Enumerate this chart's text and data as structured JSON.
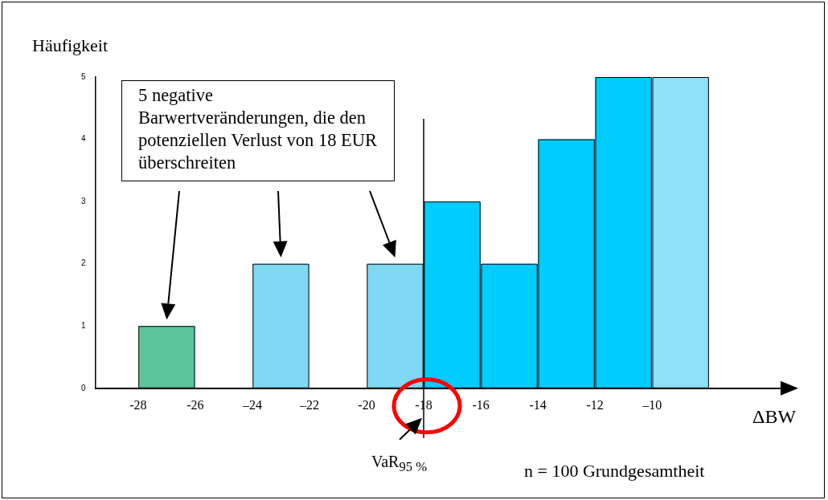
{
  "chart_data": {
    "type": "histogram",
    "ylabel": "Häufigkeit",
    "xlabel": "ΔBW",
    "bins": [
      -28,
      -26,
      -24,
      -22,
      -20,
      -18,
      -16,
      -14,
      -12,
      -10,
      -8
    ],
    "values": [
      1,
      0,
      2,
      0,
      2,
      3,
      2,
      4,
      5,
      5
    ],
    "colors": [
      "#5cc49a",
      "#ffffff",
      "#7fd8f4",
      "#ffffff",
      "#7fd8f4",
      "#00ccff",
      "#00ccff",
      "#00ccff",
      "#00ccff",
      "#8fe0fa"
    ],
    "xlim": [
      -29.5,
      -5.5
    ],
    "ylim": [
      0,
      5
    ],
    "xticks": [
      -28,
      -26,
      {
        "value": -24,
        "label": "–24"
      },
      {
        "value": -22,
        "label": "–22"
      },
      -20,
      -18,
      -16,
      -14,
      -12,
      {
        "value": -10,
        "label": "–10"
      }
    ],
    "yticks": [
      0,
      1,
      2,
      3,
      4,
      5
    ],
    "ref_lines": [
      {
        "axis": "x",
        "value": -18,
        "color": "#000000"
      }
    ],
    "annotations": [
      "5 negative Barwertveränderungen, die den potenziellen Verlust von 18 EUR überschreiten",
      "VaR$_{95 %}$",
      "n = 100 Grundgesamtheit"
    ],
    "grid": false,
    "legend": false
  }
}
